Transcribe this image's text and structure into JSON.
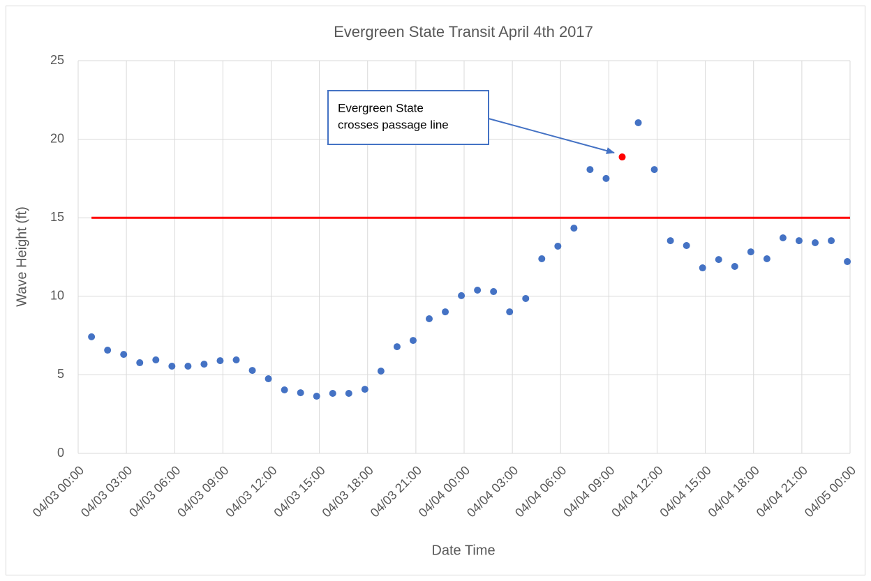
{
  "chart_data": {
    "type": "scatter",
    "title": "Evergreen State Transit April 4th 2017",
    "x_label": "Date Time",
    "y_label": "Wave Height (ft)",
    "xlim": [
      0,
      48
    ],
    "ylim": [
      0,
      25
    ],
    "yticks": [
      0,
      5,
      10,
      15,
      20,
      25
    ],
    "xticks": [
      {
        "value": 0,
        "label": "04/03 00:00"
      },
      {
        "value": 3,
        "label": "04/03 03:00"
      },
      {
        "value": 6,
        "label": "04/03 06:00"
      },
      {
        "value": 9,
        "label": "04/03 09:00"
      },
      {
        "value": 12,
        "label": "04/03 12:00"
      },
      {
        "value": 15,
        "label": "04/03 15:00"
      },
      {
        "value": 18,
        "label": "04/03 18:00"
      },
      {
        "value": 21,
        "label": "04/03 21:00"
      },
      {
        "value": 24,
        "label": "04/04 00:00"
      },
      {
        "value": 27,
        "label": "04/04 03:00"
      },
      {
        "value": 30,
        "label": "04/04 06:00"
      },
      {
        "value": 33,
        "label": "04/04 09:00"
      },
      {
        "value": 36,
        "label": "04/04 12:00"
      },
      {
        "value": 39,
        "label": "04/04 15:00"
      },
      {
        "value": 42,
        "label": "04/04 18:00"
      },
      {
        "value": 45,
        "label": "04/04 21:00"
      },
      {
        "value": 48,
        "label": "04/05 00:00"
      }
    ],
    "grid": true,
    "series": [
      {
        "type": "scatter",
        "color": "#4472c4",
        "x": [
          0.83,
          1.83,
          2.83,
          3.83,
          4.83,
          5.83,
          6.83,
          7.83,
          8.83,
          9.83,
          10.83,
          11.83,
          12.83,
          13.83,
          14.83,
          15.83,
          16.83,
          17.83,
          18.83,
          19.83,
          20.83,
          21.83,
          22.83,
          23.83,
          24.83,
          25.83,
          26.83,
          27.83,
          28.83,
          29.83,
          30.83,
          31.83,
          32.83,
          34.83,
          35.83,
          36.83,
          37.83,
          38.83,
          39.83,
          40.83,
          41.83,
          42.83,
          43.83,
          44.83,
          45.83,
          46.83,
          47.83
        ],
        "values": [
          7.42,
          6.57,
          6.3,
          5.77,
          5.95,
          5.55,
          5.55,
          5.68,
          5.9,
          5.95,
          5.28,
          4.75,
          4.04,
          3.86,
          3.64,
          3.82,
          3.82,
          4.08,
          5.24,
          6.79,
          7.19,
          8.57,
          9.01,
          10.04,
          10.39,
          10.3,
          9.01,
          9.86,
          12.39,
          13.19,
          14.34,
          18.07,
          17.5,
          21.05,
          18.07,
          13.54,
          13.23,
          11.81,
          12.34,
          11.9,
          12.83,
          12.39,
          13.72,
          13.54,
          13.41,
          13.54,
          12.21
        ]
      },
      {
        "type": "scatter",
        "color": "#ff0000",
        "x": [
          33.83
        ],
        "values": [
          18.87
        ]
      },
      {
        "type": "line",
        "color": "#ff0000",
        "x": [
          0.83,
          48
        ],
        "values": [
          15,
          15
        ]
      }
    ],
    "annotation": {
      "lines": [
        "Evergreen State",
        "crosses passage line"
      ]
    }
  }
}
